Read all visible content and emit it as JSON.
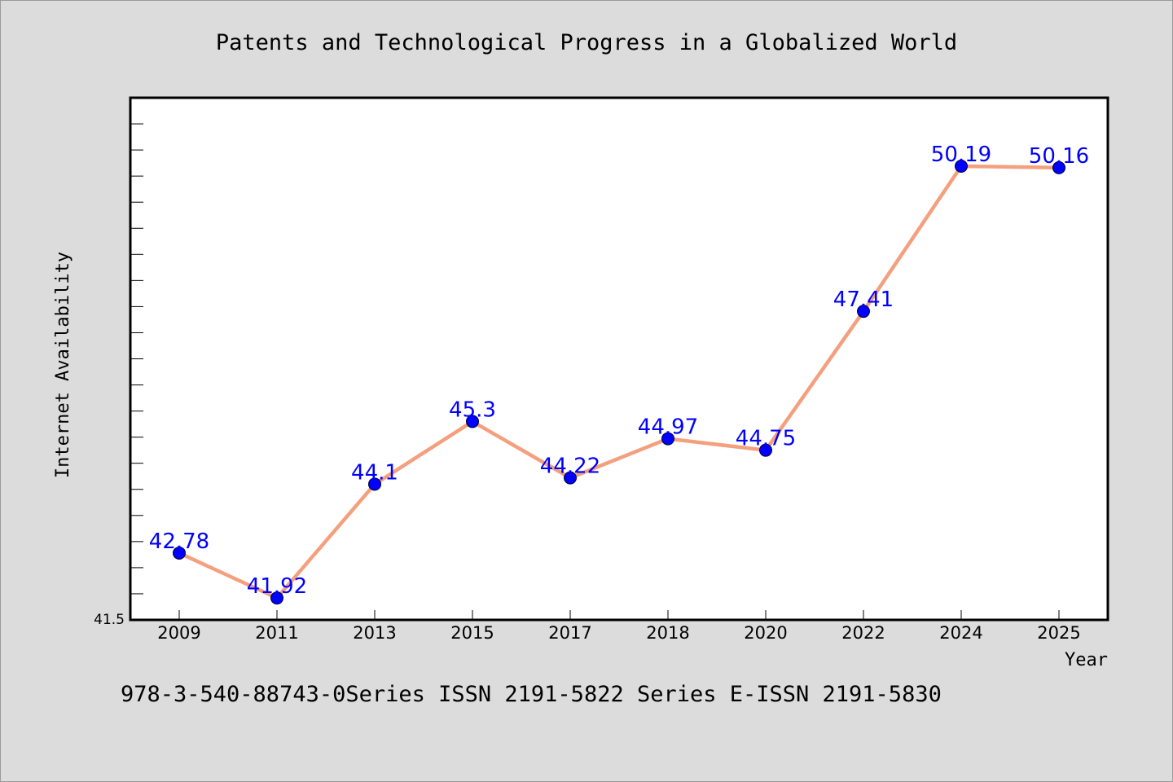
{
  "chart_data": {
    "type": "line",
    "title": "Patents and Technological Progress in a Globalized World",
    "xlabel": "Year",
    "ylabel": "Internet Availability",
    "categories": [
      "2009",
      "2011",
      "2013",
      "2015",
      "2017",
      "2018",
      "2020",
      "2022",
      "2024",
      "2025"
    ],
    "series": [
      {
        "values": [
          42.78,
          41.92,
          44.1,
          45.3,
          44.22,
          44.97,
          44.75,
          47.41,
          50.19,
          50.16
        ],
        "labels": [
          "42.78",
          "41.92",
          "44.1",
          "45.3",
          "44.22",
          "44.97",
          "44.75",
          "47.41",
          "50.19",
          "50.16"
        ],
        "line_color": "#f4a07f",
        "marker_color": "#0000ff",
        "label_color": "#0000ff"
      }
    ],
    "ylim": [
      41.5,
      51.5
    ],
    "y_min_label": "41.5",
    "grid": false,
    "legend": "none"
  },
  "footer": {
    "text": "978-3-540-88743-0Series ISSN 2191-5822 Series E-ISSN 2191-5830"
  }
}
